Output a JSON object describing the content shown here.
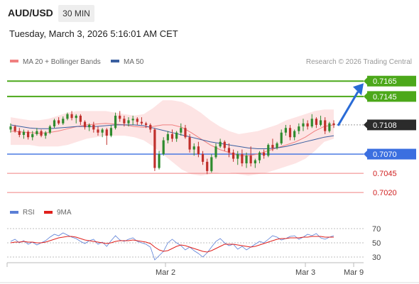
{
  "header": {
    "symbol": "AUD/USD",
    "timeframe": "30 MIN",
    "datetime": "Tuesday, March 3, 2026 5:16:01 AM CET"
  },
  "legend": {
    "items": [
      {
        "label": "MA 20 + Bollinger Bands",
        "color": "#f08080"
      },
      {
        "label": "MA 50",
        "color": "#3a5fa0"
      }
    ],
    "credit": "Research © 2026 Trading Central"
  },
  "rsi_legend": {
    "items": [
      {
        "label": "RSI",
        "color": "#5b7fd6"
      },
      {
        "label": "9MA",
        "color": "#e0201c"
      }
    ]
  },
  "colors": {
    "resistance": "#4ca81a",
    "pivot": "#3b6fe0",
    "support": "#f08080",
    "candle_up": "#2e8b2e",
    "candle_down": "#c0302c",
    "band_fill": "#fde4e4",
    "ma20": "#f08080",
    "ma50": "#3a5fa0",
    "current_price_bg": "#2b2b2b",
    "arrow": "#2a6bd6"
  },
  "chart_data": [
    {
      "type": "candlestick",
      "title": "AUD/USD",
      "ylim": [
        0.701,
        0.718
      ],
      "x_ticks": [
        "Mar 2",
        "Mar 3",
        "Mar 9"
      ],
      "levels": [
        {
          "value": 0.7165,
          "label": "0.7165",
          "kind": "resistance"
        },
        {
          "value": 0.7145,
          "label": "0.7145",
          "kind": "resistance"
        },
        {
          "value": 0.7108,
          "label": "0.7108",
          "kind": "current"
        },
        {
          "value": 0.707,
          "label": "0.7070",
          "kind": "pivot"
        },
        {
          "value": 0.7045,
          "label": "0.7045",
          "kind": "support"
        },
        {
          "value": 0.702,
          "label": "0.7020",
          "kind": "support"
        }
      ],
      "candles_ohlc": [
        [
          0.7102,
          0.711,
          0.7098,
          0.7106
        ],
        [
          0.7106,
          0.7108,
          0.7098,
          0.71
        ],
        [
          0.71,
          0.7104,
          0.7092,
          0.7095
        ],
        [
          0.7095,
          0.7102,
          0.709,
          0.7099
        ],
        [
          0.7099,
          0.7101,
          0.7089,
          0.7092
        ],
        [
          0.7092,
          0.71,
          0.7088,
          0.7096
        ],
        [
          0.7096,
          0.7104,
          0.7094,
          0.71
        ],
        [
          0.71,
          0.7102,
          0.7092,
          0.7094
        ],
        [
          0.7094,
          0.71,
          0.709,
          0.7098
        ],
        [
          0.7098,
          0.7108,
          0.7096,
          0.7106
        ],
        [
          0.7106,
          0.7116,
          0.7104,
          0.7114
        ],
        [
          0.7114,
          0.7118,
          0.7108,
          0.711
        ],
        [
          0.711,
          0.7119,
          0.7108,
          0.7116
        ],
        [
          0.7116,
          0.7124,
          0.7114,
          0.7122
        ],
        [
          0.7122,
          0.7126,
          0.7114,
          0.7117
        ],
        [
          0.7117,
          0.7122,
          0.711,
          0.712
        ],
        [
          0.712,
          0.7122,
          0.7108,
          0.7112
        ],
        [
          0.7112,
          0.7114,
          0.7102,
          0.7105
        ],
        [
          0.7105,
          0.711,
          0.71,
          0.7108
        ],
        [
          0.7108,
          0.7112,
          0.7098,
          0.7102
        ],
        [
          0.7102,
          0.7106,
          0.7094,
          0.7098
        ],
        [
          0.7098,
          0.7104,
          0.7092,
          0.7102
        ],
        [
          0.7102,
          0.7104,
          0.7082,
          0.7094
        ],
        [
          0.7094,
          0.7108,
          0.7092,
          0.7104
        ],
        [
          0.7104,
          0.7124,
          0.7102,
          0.712
        ],
        [
          0.712,
          0.7126,
          0.7112,
          0.7116
        ],
        [
          0.7116,
          0.712,
          0.7106,
          0.711
        ],
        [
          0.711,
          0.7118,
          0.7106,
          0.7114
        ],
        [
          0.7114,
          0.712,
          0.7108,
          0.7116
        ],
        [
          0.7116,
          0.7118,
          0.7108,
          0.7112
        ],
        [
          0.7112,
          0.7118,
          0.7108,
          0.711
        ],
        [
          0.711,
          0.7112,
          0.7104,
          0.7108
        ],
        [
          0.7108,
          0.711,
          0.7098,
          0.7102
        ],
        [
          0.7102,
          0.7104,
          0.7048,
          0.7052
        ],
        [
          0.7052,
          0.7074,
          0.705,
          0.707
        ],
        [
          0.707,
          0.7092,
          0.7068,
          0.7088
        ],
        [
          0.7088,
          0.71,
          0.7084,
          0.7096
        ],
        [
          0.7096,
          0.7102,
          0.7086,
          0.709
        ],
        [
          0.709,
          0.71,
          0.7086,
          0.7098
        ],
        [
          0.7098,
          0.711,
          0.7094,
          0.7104
        ],
        [
          0.7104,
          0.7108,
          0.709,
          0.7092
        ],
        [
          0.7092,
          0.7096,
          0.7072,
          0.7076
        ],
        [
          0.7076,
          0.7084,
          0.7068,
          0.708
        ],
        [
          0.708,
          0.7086,
          0.7066,
          0.707
        ],
        [
          0.707,
          0.7074,
          0.7056,
          0.706
        ],
        [
          0.706,
          0.7064,
          0.7044,
          0.7048
        ],
        [
          0.7048,
          0.707,
          0.7046,
          0.7066
        ],
        [
          0.7066,
          0.7084,
          0.7064,
          0.708
        ],
        [
          0.708,
          0.709,
          0.7078,
          0.7086
        ],
        [
          0.7086,
          0.7088,
          0.7074,
          0.7078
        ],
        [
          0.7078,
          0.7084,
          0.7066,
          0.7072
        ],
        [
          0.7072,
          0.7076,
          0.706,
          0.7064
        ],
        [
          0.7064,
          0.7074,
          0.7056,
          0.707
        ],
        [
          0.707,
          0.7076,
          0.7054,
          0.7058
        ],
        [
          0.7058,
          0.7072,
          0.7052,
          0.7068
        ],
        [
          0.7068,
          0.708,
          0.7054,
          0.7058
        ],
        [
          0.7058,
          0.7064,
          0.7052,
          0.7062
        ],
        [
          0.7062,
          0.7074,
          0.7058,
          0.7072
        ],
        [
          0.7072,
          0.7076,
          0.7064,
          0.7068
        ],
        [
          0.7068,
          0.7084,
          0.7066,
          0.7082
        ],
        [
          0.7082,
          0.709,
          0.7074,
          0.7078
        ],
        [
          0.7078,
          0.7086,
          0.7076,
          0.7084
        ],
        [
          0.7084,
          0.7102,
          0.7082,
          0.7098
        ],
        [
          0.7098,
          0.7108,
          0.7094,
          0.7104
        ],
        [
          0.7104,
          0.7108,
          0.7088,
          0.7092
        ],
        [
          0.7092,
          0.7102,
          0.7088,
          0.71
        ],
        [
          0.71,
          0.711,
          0.7096,
          0.7106
        ],
        [
          0.7106,
          0.7116,
          0.71,
          0.711
        ],
        [
          0.711,
          0.7114,
          0.7102,
          0.7106
        ],
        [
          0.7106,
          0.7122,
          0.7104,
          0.7116
        ],
        [
          0.7116,
          0.7118,
          0.7104,
          0.7108
        ],
        [
          0.7108,
          0.712,
          0.7106,
          0.7114
        ],
        [
          0.7114,
          0.7118,
          0.7096,
          0.71
        ],
        [
          0.71,
          0.7112,
          0.7098,
          0.711
        ],
        [
          0.711,
          0.7114,
          0.7104,
          0.7108
        ]
      ],
      "ma20": [
        0.71,
        0.7099,
        0.7098,
        0.7097,
        0.7098,
        0.71,
        0.7103,
        0.7106,
        0.7108,
        0.7109,
        0.711,
        0.7109,
        0.7108,
        0.7106,
        0.7105,
        0.7106,
        0.7108,
        0.7108,
        0.7105,
        0.7098,
        0.709,
        0.7082,
        0.7076,
        0.7072,
        0.7068,
        0.7068,
        0.707,
        0.7074,
        0.7078,
        0.7082,
        0.7086,
        0.7092,
        0.71,
        0.7106,
        0.7108
      ],
      "ma50": [
        0.7108,
        0.7106,
        0.7104,
        0.7103,
        0.7103,
        0.7104,
        0.7105,
        0.7106,
        0.7106,
        0.7106,
        0.7107,
        0.7108,
        0.7108,
        0.7108,
        0.7107,
        0.7104,
        0.7101,
        0.7098,
        0.7095,
        0.7092,
        0.7089,
        0.7086,
        0.7084,
        0.7082,
        0.708,
        0.7078,
        0.7077,
        0.7077,
        0.7078,
        0.708,
        0.7083,
        0.7086,
        0.7089,
        0.7092,
        0.7094
      ],
      "bb_upper": [
        0.7118,
        0.7116,
        0.7114,
        0.7114,
        0.7116,
        0.712,
        0.7124,
        0.7126,
        0.7126,
        0.7126,
        0.7126,
        0.7124,
        0.7122,
        0.712,
        0.7122,
        0.713,
        0.714,
        0.714,
        0.7138,
        0.7132,
        0.7124,
        0.7114,
        0.7106,
        0.71,
        0.7096,
        0.7098,
        0.71,
        0.7104,
        0.7108,
        0.7114,
        0.7118,
        0.7122,
        0.7126,
        0.7128,
        0.7128
      ],
      "bb_lower": [
        0.7082,
        0.7082,
        0.7082,
        0.708,
        0.708,
        0.708,
        0.7082,
        0.7086,
        0.709,
        0.7092,
        0.7094,
        0.7094,
        0.7094,
        0.7092,
        0.7088,
        0.708,
        0.707,
        0.706,
        0.705,
        0.7044,
        0.7042,
        0.7044,
        0.7046,
        0.7046,
        0.7044,
        0.7042,
        0.7044,
        0.7046,
        0.705,
        0.7054,
        0.7058,
        0.7064,
        0.7074,
        0.7086,
        0.709
      ]
    },
    {
      "type": "line",
      "title": "",
      "ylim": [
        20,
        80
      ],
      "y_ticks": [
        "70",
        "50",
        "30"
      ],
      "series": [
        {
          "name": "RSI",
          "values": [
            52,
            55,
            50,
            53,
            48,
            51,
            47,
            50,
            53,
            58,
            62,
            60,
            64,
            61,
            58,
            56,
            52,
            49,
            53,
            55,
            48,
            51,
            45,
            53,
            60,
            54,
            52,
            55,
            57,
            52,
            50,
            48,
            44,
            26,
            32,
            38,
            50,
            55,
            50,
            46,
            40,
            44,
            39,
            35,
            30,
            36,
            44,
            52,
            56,
            50,
            46,
            48,
            41,
            45,
            40,
            44,
            48,
            52,
            50,
            55,
            60,
            58,
            54,
            56,
            59,
            60,
            55,
            58,
            62,
            60,
            63,
            57,
            55,
            58,
            60
          ]
        },
        {
          "name": "9MA",
          "values": [
            50,
            51,
            51,
            52,
            51,
            51,
            50,
            50,
            51,
            53,
            55,
            57,
            58,
            59,
            59,
            58,
            56,
            54,
            53,
            52,
            51,
            50,
            49,
            50,
            52,
            53,
            53,
            53,
            54,
            53,
            52,
            51,
            49,
            44,
            40,
            38,
            39,
            42,
            45,
            47,
            46,
            44,
            42,
            40,
            38,
            37,
            39,
            42,
            45,
            48,
            48,
            48,
            47,
            46,
            45,
            44,
            45,
            47,
            49,
            51,
            53,
            55,
            56,
            56,
            57,
            57,
            57,
            58,
            58,
            59,
            59,
            59,
            58,
            58,
            58
          ]
        }
      ]
    }
  ]
}
